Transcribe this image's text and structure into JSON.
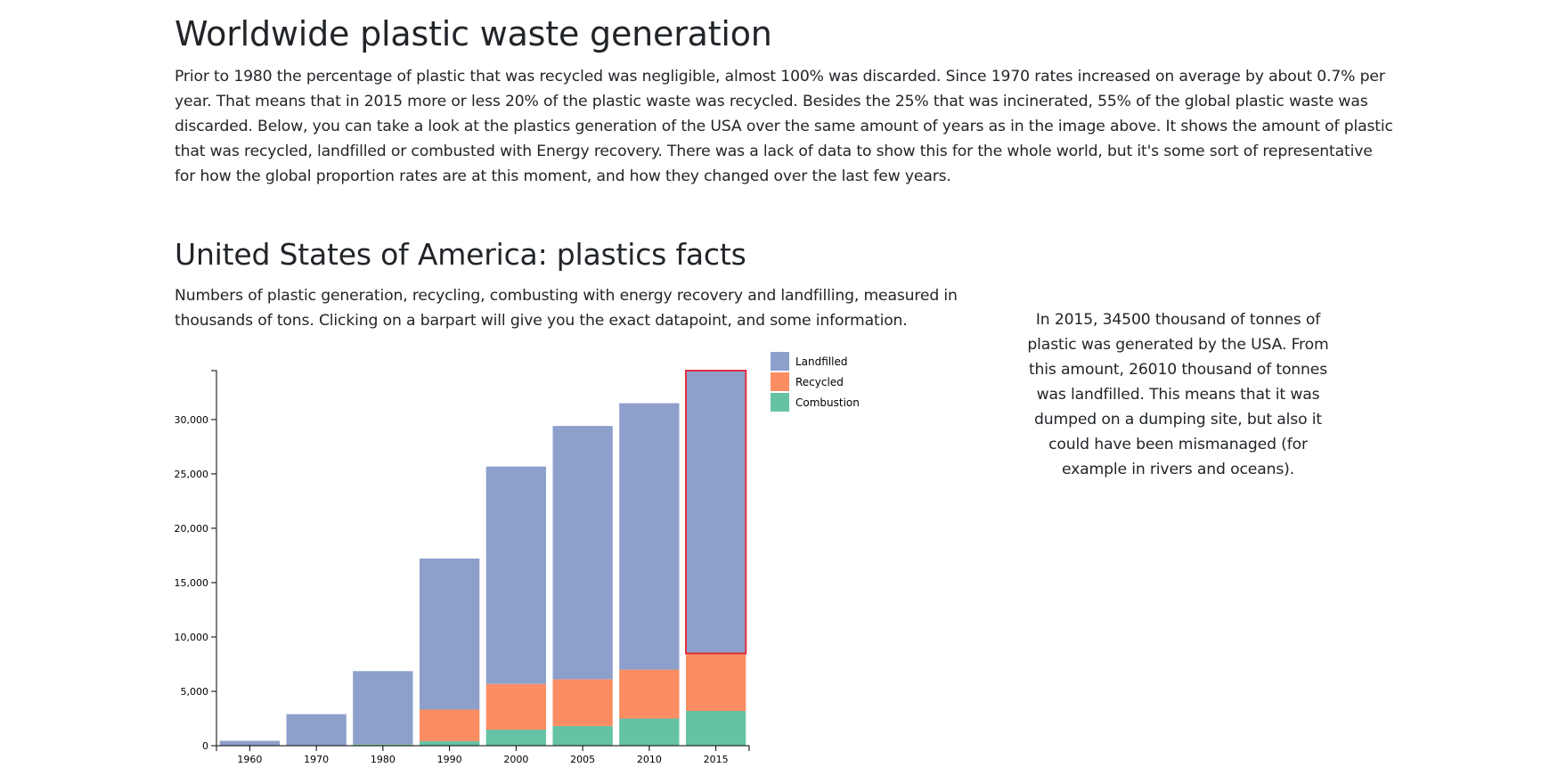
{
  "page": {
    "title": "Worldwide plastic waste generation",
    "intro": "Prior to 1980 the percentage of plastic that was recycled was negligible, almost 100% was discarded. Since 1970 rates increased on average by about 0.7% per year. That means that in 2015 more or less 20% of the plastic waste was recycled. Besides the 25% that was incinerated, 55% of the global plastic waste was discarded. Below, you can take a look at the plastics generation of the USA over the same amount of years as in the image above. It shows the amount of plastic that was recycled, landfilled or combusted with Energy recovery. There was a lack of data to show this for the whole world, but it's some sort of representative for how the global proportion rates are at this moment, and how they changed over the last few years.",
    "section_title": "United States of America: plastics facts",
    "chart_description": "Numbers of plastic generation, recycling, combusting with energy recovery and landfilling, measured in thousands of tons. Clicking on a barpart will give you the exact datapoint, and some information.",
    "info_text": "In 2015, 34500 thousand of tonnes of plastic was generated by the USA. From this amount, 26010 thousand of tonnes was landfilled. This means that it was dumped on a dumping site, but also it could have been mismanaged (for example in rivers and oceans)."
  },
  "chart_data": {
    "type": "bar",
    "stacked": true,
    "title": "",
    "xlabel": "",
    "ylabel": "",
    "categories": [
      "1960",
      "1970",
      "1980",
      "1990",
      "2000",
      "2005",
      "2010",
      "2015"
    ],
    "series": [
      {
        "name": "Combustion",
        "color": "#66c2a5",
        "values": [
          0,
          0,
          140,
          420,
          1480,
          1810,
          2500,
          3200
        ]
      },
      {
        "name": "Recycled",
        "color": "#fc8d62",
        "values": [
          0,
          0,
          20,
          2900,
          4200,
          4300,
          4500,
          5290
        ]
      },
      {
        "name": "Landfilled",
        "color": "#8da0cb",
        "values": [
          450,
          2900,
          6700,
          13900,
          20000,
          23300,
          24500,
          26010
        ]
      }
    ],
    "legend_order": [
      "Landfilled",
      "Recycled",
      "Combustion"
    ],
    "legend_position": "top-right",
    "ylim": [
      0,
      34500
    ],
    "yticks": [
      0,
      5000,
      10000,
      15000,
      20000,
      25000,
      30000
    ],
    "ytick_labels": [
      "0",
      "5,000",
      "10,000",
      "15,000",
      "20,000",
      "25,000",
      "30,000"
    ],
    "highlighted": {
      "category": "2015",
      "series": "Landfilled",
      "stroke": "#e0303b"
    },
    "grid": false
  }
}
